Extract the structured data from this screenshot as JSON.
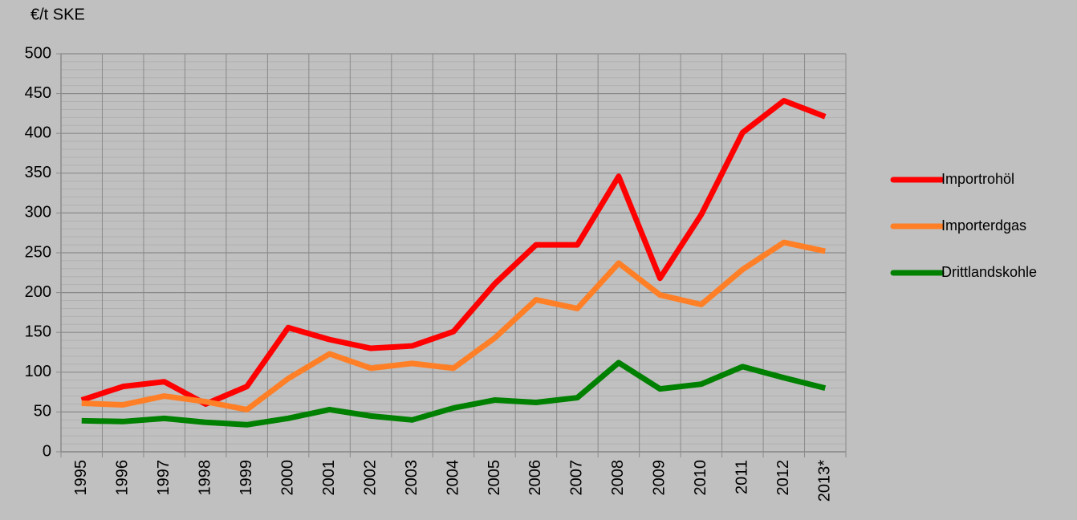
{
  "chart_data": {
    "type": "line",
    "y_axis_label": "€/t SKE",
    "categories": [
      "1995",
      "1996",
      "1997",
      "1998",
      "1999",
      "2000",
      "2001",
      "2002",
      "2003",
      "2004",
      "2005",
      "2006",
      "2007",
      "2008",
      "2009",
      "2010",
      "2011",
      "2012",
      "2013*"
    ],
    "series": [
      {
        "name": "Importrohöl",
        "color": "#ff0000",
        "values": [
          65,
          82,
          88,
          60,
          82,
          156,
          141,
          130,
          133,
          151,
          211,
          260,
          260,
          346,
          218,
          298,
          401,
          441,
          421
        ]
      },
      {
        "name": "Importerdgas",
        "color": "#ff7f27",
        "values": [
          61,
          59,
          70,
          63,
          53,
          92,
          123,
          105,
          111,
          105,
          143,
          191,
          180,
          237,
          197,
          185,
          229,
          263,
          252
        ]
      },
      {
        "name": "Drittlandskohle",
        "color": "#008000",
        "values": [
          39,
          38,
          42,
          37,
          34,
          42,
          53,
          45,
          40,
          55,
          65,
          62,
          68,
          112,
          79,
          85,
          107,
          93,
          80
        ]
      }
    ],
    "ylim": [
      0,
      500
    ],
    "yticks": [
      0,
      50,
      100,
      150,
      200,
      250,
      300,
      350,
      400,
      450,
      500
    ],
    "yminorticks": [
      10,
      20,
      30,
      40,
      60,
      70,
      80,
      90,
      110,
      120,
      130,
      140,
      160,
      170,
      180,
      190,
      210,
      220,
      230,
      240,
      260,
      270,
      280,
      290,
      310,
      320,
      330,
      340,
      360,
      370,
      380,
      390,
      410,
      420,
      430,
      440,
      460,
      470,
      480,
      490
    ],
    "grid": true,
    "legend": "right"
  }
}
